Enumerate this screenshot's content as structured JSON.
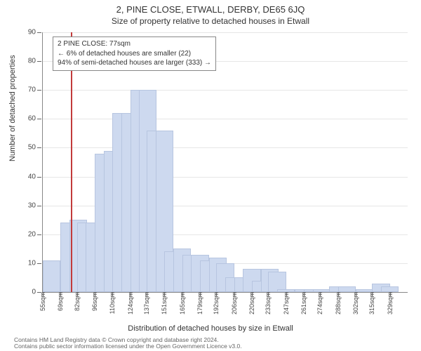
{
  "title": "2, PINE CLOSE, ETWALL, DERBY, DE65 6JQ",
  "subtitle": "Size of property relative to detached houses in Etwall",
  "y_axis_title": "Number of detached properties",
  "x_axis_title": "Distribution of detached houses by size in Etwall",
  "footnote_line1": "Contains HM Land Registry data © Crown copyright and database right 2024.",
  "footnote_line2": "Contains public sector information licensed under the Open Government Licence v3.0.",
  "chart": {
    "type": "histogram",
    "ylim": [
      0,
      90
    ],
    "ytick_step": 10,
    "background_color": "#ffffff",
    "grid_color": "#e6e6e6",
    "axis_color": "#888888",
    "bar_fill": "#cdd9ef",
    "bar_stroke": "#b7c5e0",
    "ref_line_color": "#c23b3b",
    "ref_line_x": 77,
    "x_label_suffix": "sqm",
    "x_labels": [
      55,
      69,
      82,
      96,
      110,
      124,
      137,
      151,
      165,
      179,
      192,
      206,
      220,
      233,
      247,
      261,
      274,
      288,
      302,
      315,
      329
    ],
    "bars": [
      {
        "x": 55,
        "v": 11
      },
      {
        "x": 69,
        "v": 24
      },
      {
        "x": 76,
        "v": 25
      },
      {
        "x": 82,
        "v": 24
      },
      {
        "x": 89,
        "v": 24
      },
      {
        "x": 96,
        "v": 48
      },
      {
        "x": 103,
        "v": 49
      },
      {
        "x": 110,
        "v": 62
      },
      {
        "x": 117,
        "v": 62
      },
      {
        "x": 124,
        "v": 70
      },
      {
        "x": 131,
        "v": 70
      },
      {
        "x": 137,
        "v": 56
      },
      {
        "x": 144,
        "v": 56
      },
      {
        "x": 151,
        "v": 14
      },
      {
        "x": 158,
        "v": 15
      },
      {
        "x": 165,
        "v": 13
      },
      {
        "x": 172,
        "v": 13
      },
      {
        "x": 179,
        "v": 11
      },
      {
        "x": 186,
        "v": 12
      },
      {
        "x": 192,
        "v": 10
      },
      {
        "x": 199,
        "v": 5
      },
      {
        "x": 206,
        "v": 5
      },
      {
        "x": 213,
        "v": 8
      },
      {
        "x": 220,
        "v": 4
      },
      {
        "x": 227,
        "v": 8
      },
      {
        "x": 233,
        "v": 7
      },
      {
        "x": 240,
        "v": 1
      },
      {
        "x": 247,
        "v": 0
      },
      {
        "x": 254,
        "v": 1
      },
      {
        "x": 261,
        "v": 1
      },
      {
        "x": 268,
        "v": 1
      },
      {
        "x": 274,
        "v": 0
      },
      {
        "x": 281,
        "v": 2
      },
      {
        "x": 288,
        "v": 2
      },
      {
        "x": 295,
        "v": 0
      },
      {
        "x": 302,
        "v": 1
      },
      {
        "x": 309,
        "v": 0
      },
      {
        "x": 315,
        "v": 3
      },
      {
        "x": 322,
        "v": 2
      },
      {
        "x": 329,
        "v": 0
      }
    ],
    "annotation": {
      "line1": "2 PINE CLOSE: 77sqm",
      "line2": "← 6% of detached houses are smaller (22)",
      "line3": "94% of semi-detached houses are larger (333) →",
      "border_color": "#888888",
      "bg_color": "#ffffff",
      "fontsize": 10
    }
  }
}
